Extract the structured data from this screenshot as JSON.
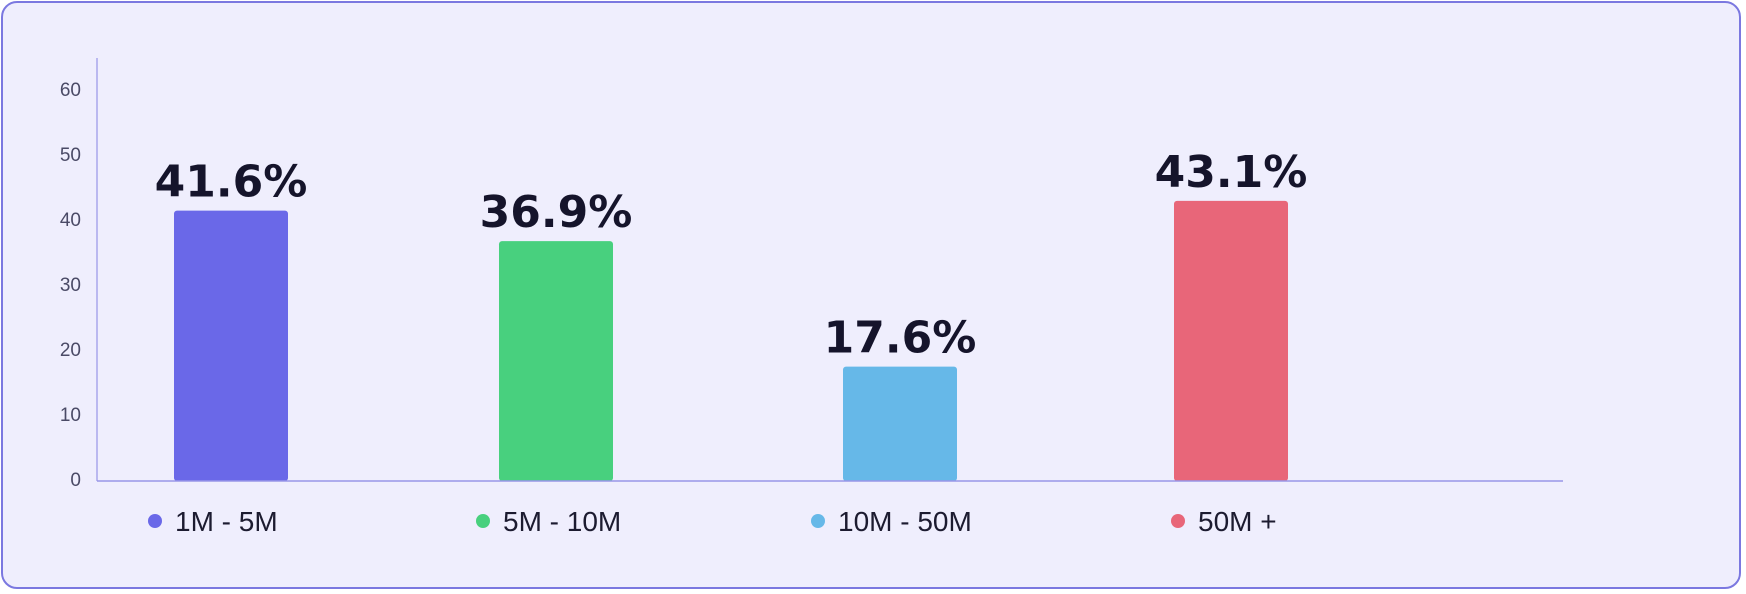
{
  "chart_data": {
    "type": "bar",
    "categories": [
      "1M - 5M",
      "5M - 10M",
      "10M - 50M",
      "50M +"
    ],
    "values": [
      41.6,
      36.9,
      17.6,
      43.1
    ],
    "value_labels": [
      "41.6%",
      "36.9%",
      "17.6%",
      "43.1%"
    ],
    "colors": [
      "#6a68e8",
      "#48d07e",
      "#66b8e8",
      "#e86679"
    ],
    "ylim": [
      0,
      60
    ],
    "yticks": [
      0,
      10,
      20,
      30,
      40,
      50,
      60
    ],
    "ytick_labels": [
      "0",
      "10",
      "20",
      "30",
      "40",
      "50",
      "60"
    ],
    "grid": true,
    "legend_position": "bottom",
    "title": "",
    "xlabel": "",
    "ylabel": ""
  }
}
